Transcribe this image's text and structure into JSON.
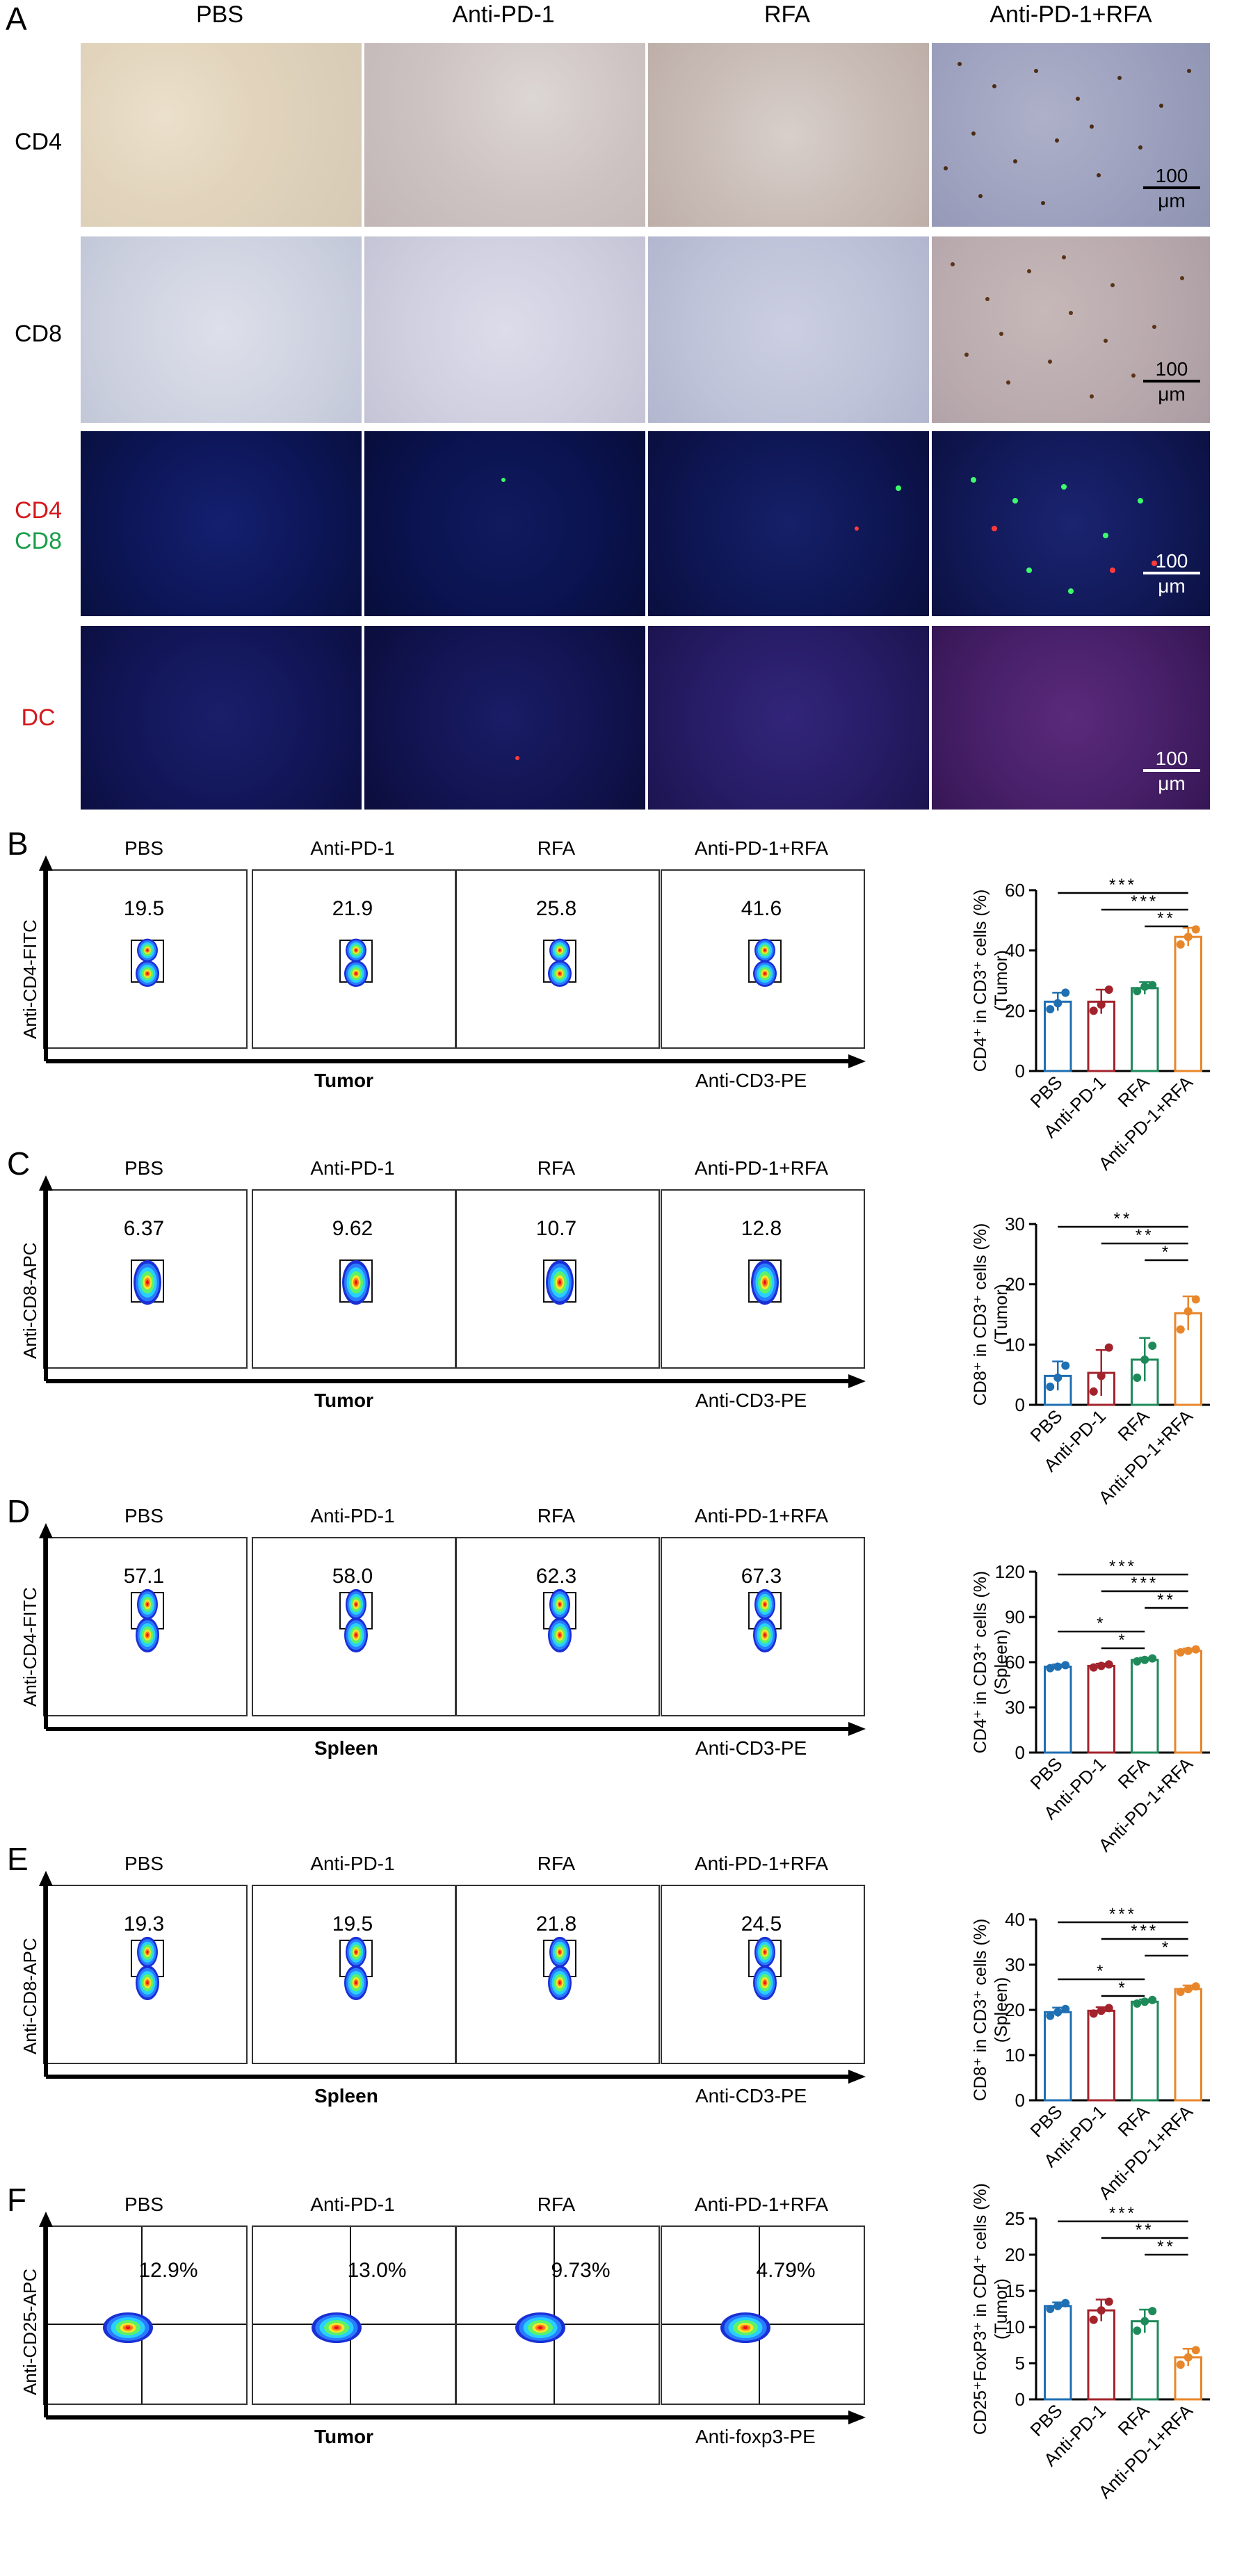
{
  "panel_letters": [
    "A",
    "B",
    "C",
    "D",
    "E",
    "F"
  ],
  "panel_a": {
    "columns": [
      "PBS",
      "Anti-PD-1",
      "RFA",
      "Anti-PD-1+RFA"
    ],
    "rows": [
      {
        "label": "CD4",
        "stain": "IHC"
      },
      {
        "label": "CD8",
        "stain": "IHC"
      },
      {
        "label_lines": [
          "CD4",
          "CD8"
        ],
        "label_colors": [
          "#d4181c",
          "#1a9e4a"
        ],
        "stain": "IF"
      },
      {
        "label": "DC",
        "label_color": "#d4181c",
        "stain": "IF"
      }
    ],
    "scale_bar": {
      "value": "100",
      "unit": "μm"
    }
  },
  "flow_rows": [
    {
      "letter": "B",
      "groups": [
        "PBS",
        "Anti-PD-1",
        "RFA",
        "Anti-PD-1+RFA"
      ],
      "y_marker": "Anti-CD4-FITC",
      "x_marker": "Anti-CD3-PE",
      "tissue": "Tumor",
      "values": [
        "19.5",
        "21.9",
        "25.8",
        "41.6"
      ],
      "quadrant": false
    },
    {
      "letter": "C",
      "groups": [
        "PBS",
        "Anti-PD-1",
        "RFA",
        "Anti-PD-1+RFA"
      ],
      "y_marker": "Anti-CD8-APC",
      "x_marker": "Anti-CD3-PE",
      "tissue": "Tumor",
      "values": [
        "6.37",
        "9.62",
        "10.7",
        "12.8"
      ],
      "quadrant": false
    },
    {
      "letter": "D",
      "groups": [
        "PBS",
        "Anti-PD-1",
        "RFA",
        "Anti-PD-1+RFA"
      ],
      "y_marker": "Anti-CD4-FITC",
      "x_marker": "Anti-CD3-PE",
      "tissue": "Spleen",
      "values": [
        "57.1",
        "58.0",
        "62.3",
        "67.3"
      ],
      "quadrant": false
    },
    {
      "letter": "E",
      "groups": [
        "PBS",
        "Anti-PD-1",
        "RFA",
        "Anti-PD-1+RFA"
      ],
      "y_marker": "Anti-CD8-APC",
      "x_marker": "Anti-CD3-PE",
      "tissue": "Spleen",
      "values": [
        "19.3",
        "19.5",
        "21.8",
        "24.5"
      ],
      "quadrant": false
    },
    {
      "letter": "F",
      "groups": [
        "PBS",
        "Anti-PD-1",
        "RFA",
        "Anti-PD-1+RFA"
      ],
      "y_marker": "Anti-CD25-APC",
      "x_marker": "Anti-foxp3-PE",
      "tissue": "Tumor",
      "values": [
        "12.9%",
        "13.0%",
        "9.73%",
        "4.79%"
      ],
      "quadrant": true
    }
  ],
  "group_colors": [
    "#1f6fb3",
    "#a3232c",
    "#1e8a5a",
    "#e8862a"
  ],
  "chart_data": [
    {
      "type": "bar",
      "panel": "B",
      "ylabel_main": "CD4⁺ in CD3⁺ cells (%)",
      "ylabel_sub": "(Tumor)",
      "categories": [
        "PBS",
        "Anti-PD-1",
        "RFA",
        "Anti-PD-1+RFA"
      ],
      "values": [
        23,
        23,
        27.5,
        44.5
      ],
      "errors": [
        3,
        4,
        2,
        3
      ],
      "points": [
        [
          20.5,
          22.5,
          26
        ],
        [
          20,
          22,
          27
        ],
        [
          26.5,
          28,
          28.5
        ],
        [
          42,
          44.5,
          47
        ]
      ],
      "ylim": [
        0,
        60
      ],
      "yticks": [
        "0",
        "20",
        "40",
        "60"
      ],
      "significance": [
        {
          "from": 0,
          "to": 3,
          "label": "***"
        },
        {
          "from": 1,
          "to": 3,
          "label": "***"
        },
        {
          "from": 2,
          "to": 3,
          "label": "**"
        }
      ]
    },
    {
      "type": "bar",
      "panel": "C",
      "ylabel_main": "CD8⁺ in CD3⁺ cells (%)",
      "ylabel_sub": "(Tumor)",
      "categories": [
        "PBS",
        "Anti-PD-1",
        "RFA",
        "Anti-PD-1+RFA"
      ],
      "values": [
        4.8,
        5.3,
        7.5,
        15.2
      ],
      "errors": [
        2.4,
        3.8,
        3.6,
        2.8
      ],
      "points": [
        [
          3,
          4.5,
          6.5
        ],
        [
          2.2,
          4.8,
          9.5
        ],
        [
          4.5,
          7.5,
          9.8
        ],
        [
          12.5,
          15.5,
          17.5
        ]
      ],
      "ylim": [
        0,
        30
      ],
      "yticks": [
        "0",
        "10",
        "20",
        "30"
      ],
      "significance": [
        {
          "from": 0,
          "to": 3,
          "label": "**"
        },
        {
          "from": 1,
          "to": 3,
          "label": "**"
        },
        {
          "from": 2,
          "to": 3,
          "label": "*"
        }
      ]
    },
    {
      "type": "bar",
      "panel": "D",
      "ylabel_main": "CD4⁺ in CD3⁺ cells (%)",
      "ylabel_sub": "(Spleen)",
      "categories": [
        "PBS",
        "Anti-PD-1",
        "RFA",
        "Anti-PD-1+RFA"
      ],
      "values": [
        57,
        57.5,
        61.5,
        67.5
      ],
      "errors": [
        1.5,
        1.5,
        1.5,
        1.5
      ],
      "points": [
        [
          56,
          57,
          58
        ],
        [
          56.5,
          57.5,
          58.5
        ],
        [
          60.5,
          61.5,
          62.5
        ],
        [
          66.5,
          67.5,
          68.5
        ]
      ],
      "ylim": [
        0,
        120
      ],
      "yticks": [
        "0",
        "30",
        "60",
        "90",
        "120"
      ],
      "significance": [
        {
          "from": 0,
          "to": 3,
          "label": "***"
        },
        {
          "from": 1,
          "to": 3,
          "label": "***"
        },
        {
          "from": 2,
          "to": 3,
          "label": "**"
        },
        {
          "from": 0,
          "to": 2,
          "label": "*"
        },
        {
          "from": 1,
          "to": 2,
          "label": "*"
        }
      ]
    },
    {
      "type": "bar",
      "panel": "E",
      "ylabel_main": "CD8⁺ in CD3⁺ cells (%)",
      "ylabel_sub": "(Spleen)",
      "categories": [
        "PBS",
        "Anti-PD-1",
        "RFA",
        "Anti-PD-1+RFA"
      ],
      "values": [
        19.5,
        19.8,
        21.8,
        24.6
      ],
      "errors": [
        1,
        0.8,
        0.5,
        0.8
      ],
      "points": [
        [
          18.7,
          19.5,
          20.2
        ],
        [
          19.2,
          19.8,
          20.4
        ],
        [
          21.4,
          21.8,
          22.2
        ],
        [
          24,
          24.6,
          25.2
        ]
      ],
      "ylim": [
        0,
        40
      ],
      "yticks": [
        "0",
        "10",
        "20",
        "30",
        "40"
      ],
      "significance": [
        {
          "from": 0,
          "to": 3,
          "label": "***"
        },
        {
          "from": 1,
          "to": 3,
          "label": "***"
        },
        {
          "from": 2,
          "to": 3,
          "label": "*"
        },
        {
          "from": 0,
          "to": 2,
          "label": "*"
        },
        {
          "from": 1,
          "to": 2,
          "label": "*"
        }
      ]
    },
    {
      "type": "bar",
      "panel": "F",
      "ylabel_main": "CD25⁺FoxP3⁺ in CD4⁺ cells (%)",
      "ylabel_sub": "(Tumor)",
      "categories": [
        "PBS",
        "Anti-PD-1",
        "RFA",
        "Anti-PD-1+RFA"
      ],
      "values": [
        12.9,
        12.3,
        10.8,
        5.8
      ],
      "errors": [
        0.5,
        1.5,
        1.6,
        1.2
      ],
      "points": [
        [
          12.5,
          12.9,
          13.3
        ],
        [
          11,
          12.3,
          13.5
        ],
        [
          9.5,
          10.8,
          12.2
        ],
        [
          4.8,
          5.8,
          6.8
        ]
      ],
      "ylim": [
        0,
        25
      ],
      "yticks": [
        "0",
        "5",
        "10",
        "15",
        "20",
        "25"
      ],
      "significance": [
        {
          "from": 0,
          "to": 3,
          "label": "***"
        },
        {
          "from": 1,
          "to": 3,
          "label": "**"
        },
        {
          "from": 2,
          "to": 3,
          "label": "**"
        }
      ]
    }
  ]
}
